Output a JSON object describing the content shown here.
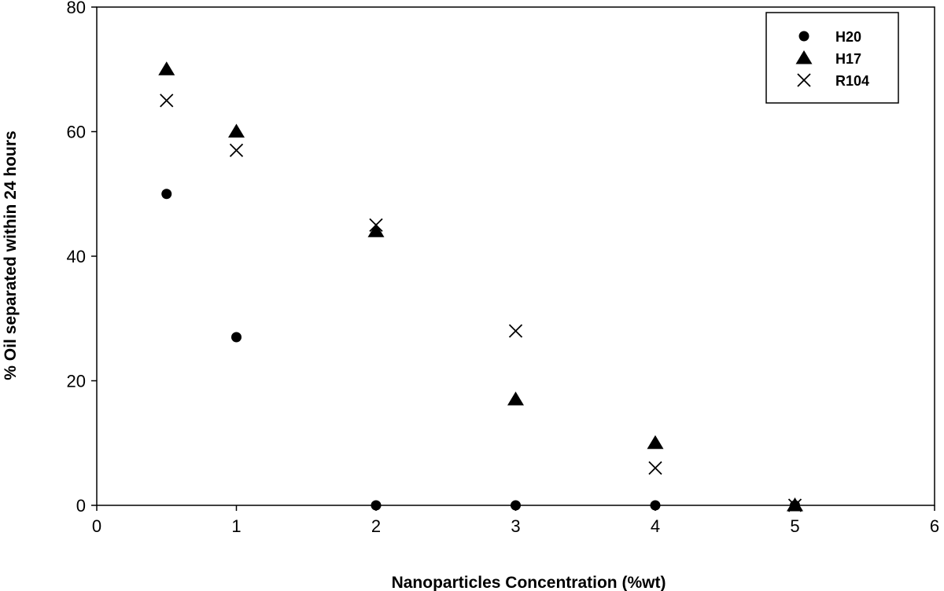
{
  "chart_data": {
    "type": "scatter",
    "title": "",
    "xlabel": "Nanoparticles Concentration (%wt)",
    "ylabel": "% Oil separated within 24 hours",
    "xlim": [
      0,
      6
    ],
    "ylim": [
      0,
      80
    ],
    "xticks": [
      0,
      1,
      2,
      3,
      4,
      5,
      6
    ],
    "yticks": [
      0,
      20,
      40,
      60,
      80
    ],
    "grid": false,
    "legend_position": "top-right",
    "series": [
      {
        "name": "H20",
        "marker": "circle",
        "x": [
          0.5,
          1,
          2,
          3,
          4,
          5
        ],
        "y": [
          50,
          27,
          0,
          0,
          0,
          0
        ]
      },
      {
        "name": "H17",
        "marker": "triangle",
        "x": [
          0.5,
          1,
          2,
          3,
          4,
          5
        ],
        "y": [
          70,
          60,
          44,
          17,
          10,
          0
        ]
      },
      {
        "name": "R104",
        "marker": "x",
        "x": [
          0.5,
          1,
          2,
          3,
          4,
          5
        ],
        "y": [
          65,
          57,
          45,
          28,
          6,
          0
        ]
      }
    ]
  }
}
